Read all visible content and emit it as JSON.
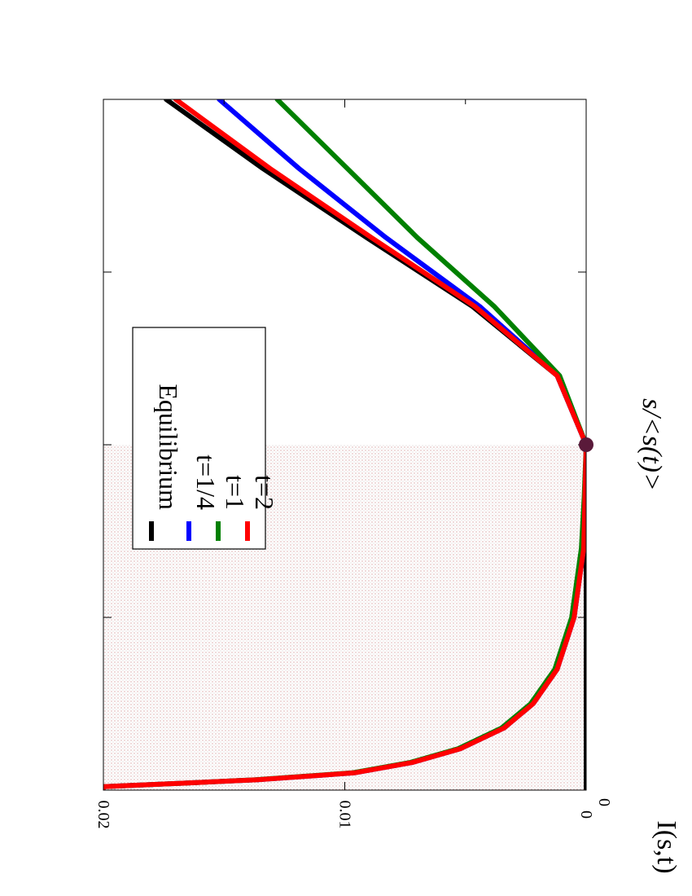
{
  "chart_data": {
    "type": "line",
    "rotated": "90-degrees-clockwise",
    "xlabel": "s/<s(t)>",
    "ylabel": "I(s,t)",
    "xlim": [
      0,
      2
    ],
    "ylim": [
      0,
      0.02
    ],
    "y_ticks": [
      "0",
      "0.01",
      "0.02"
    ],
    "x_ticks": [
      "0"
    ],
    "grid": false,
    "legend_position": "top-left",
    "shaded_region": {
      "x_from": 0,
      "x_to": 1.0,
      "pattern": "dotted-pink"
    },
    "marker": {
      "x": 1.0,
      "y": 0,
      "color": "#5a1a3a"
    },
    "series": [
      {
        "name": "Equilibrium",
        "color": "#000000",
        "x": [
          0.005,
          0.01,
          0.02,
          0.03,
          0.05,
          0.08,
          0.12,
          0.18,
          0.25,
          0.35,
          0.5,
          0.7,
          0.85,
          1.0,
          1.2,
          1.4,
          1.6,
          1.8,
          2.0
        ],
        "y": [
          0.0,
          0.0,
          0.0,
          0.0,
          0.0,
          0.0,
          0.0,
          0.0,
          0.0,
          0.0,
          0.0,
          0.0,
          0.0,
          0.0,
          0.0012,
          0.0047,
          0.0091,
          0.0134,
          0.0174
        ]
      },
      {
        "name": "t=1/4",
        "color": "#0000ff",
        "x": [
          0.005,
          0.01,
          0.02,
          0.03,
          0.05,
          0.08,
          0.12,
          0.18,
          0.25,
          0.35,
          0.5,
          0.7,
          0.85,
          1.0,
          1.2,
          1.4,
          1.6,
          1.8,
          2.0
        ],
        "y": [
          0.02,
          0.02,
          0.0167,
          0.0136,
          0.0096,
          0.0072,
          0.0052,
          0.0034,
          0.0022,
          0.0012,
          0.0005,
          0.0001,
          5e-05,
          0.0,
          0.0012,
          0.0044,
          0.0083,
          0.0119,
          0.0152
        ]
      },
      {
        "name": "t=1",
        "color": "#008000",
        "x": [
          0.005,
          0.01,
          0.02,
          0.03,
          0.05,
          0.08,
          0.12,
          0.18,
          0.25,
          0.35,
          0.5,
          0.7,
          0.85,
          1.0,
          1.2,
          1.4,
          1.6,
          1.8,
          2.0
        ],
        "y": [
          0.02,
          0.02,
          0.0167,
          0.0137,
          0.0097,
          0.0073,
          0.0053,
          0.0035,
          0.0023,
          0.0013,
          0.0006,
          0.0002,
          8e-05,
          0.0,
          0.0011,
          0.0038,
          0.007,
          0.0099,
          0.0128
        ]
      },
      {
        "name": "t=2",
        "color": "#ff0000",
        "x": [
          0.005,
          0.01,
          0.02,
          0.03,
          0.05,
          0.08,
          0.12,
          0.18,
          0.25,
          0.35,
          0.5,
          0.7,
          0.85,
          1.0,
          1.2,
          1.4,
          1.6,
          1.8,
          2.0
        ],
        "y": [
          0.02,
          0.02,
          0.0167,
          0.0136,
          0.0096,
          0.0072,
          0.0052,
          0.0034,
          0.0022,
          0.0012,
          0.0005,
          0.0001,
          5e-05,
          0.0,
          0.0012,
          0.0046,
          0.0089,
          0.0131,
          0.017
        ]
      }
    ]
  }
}
